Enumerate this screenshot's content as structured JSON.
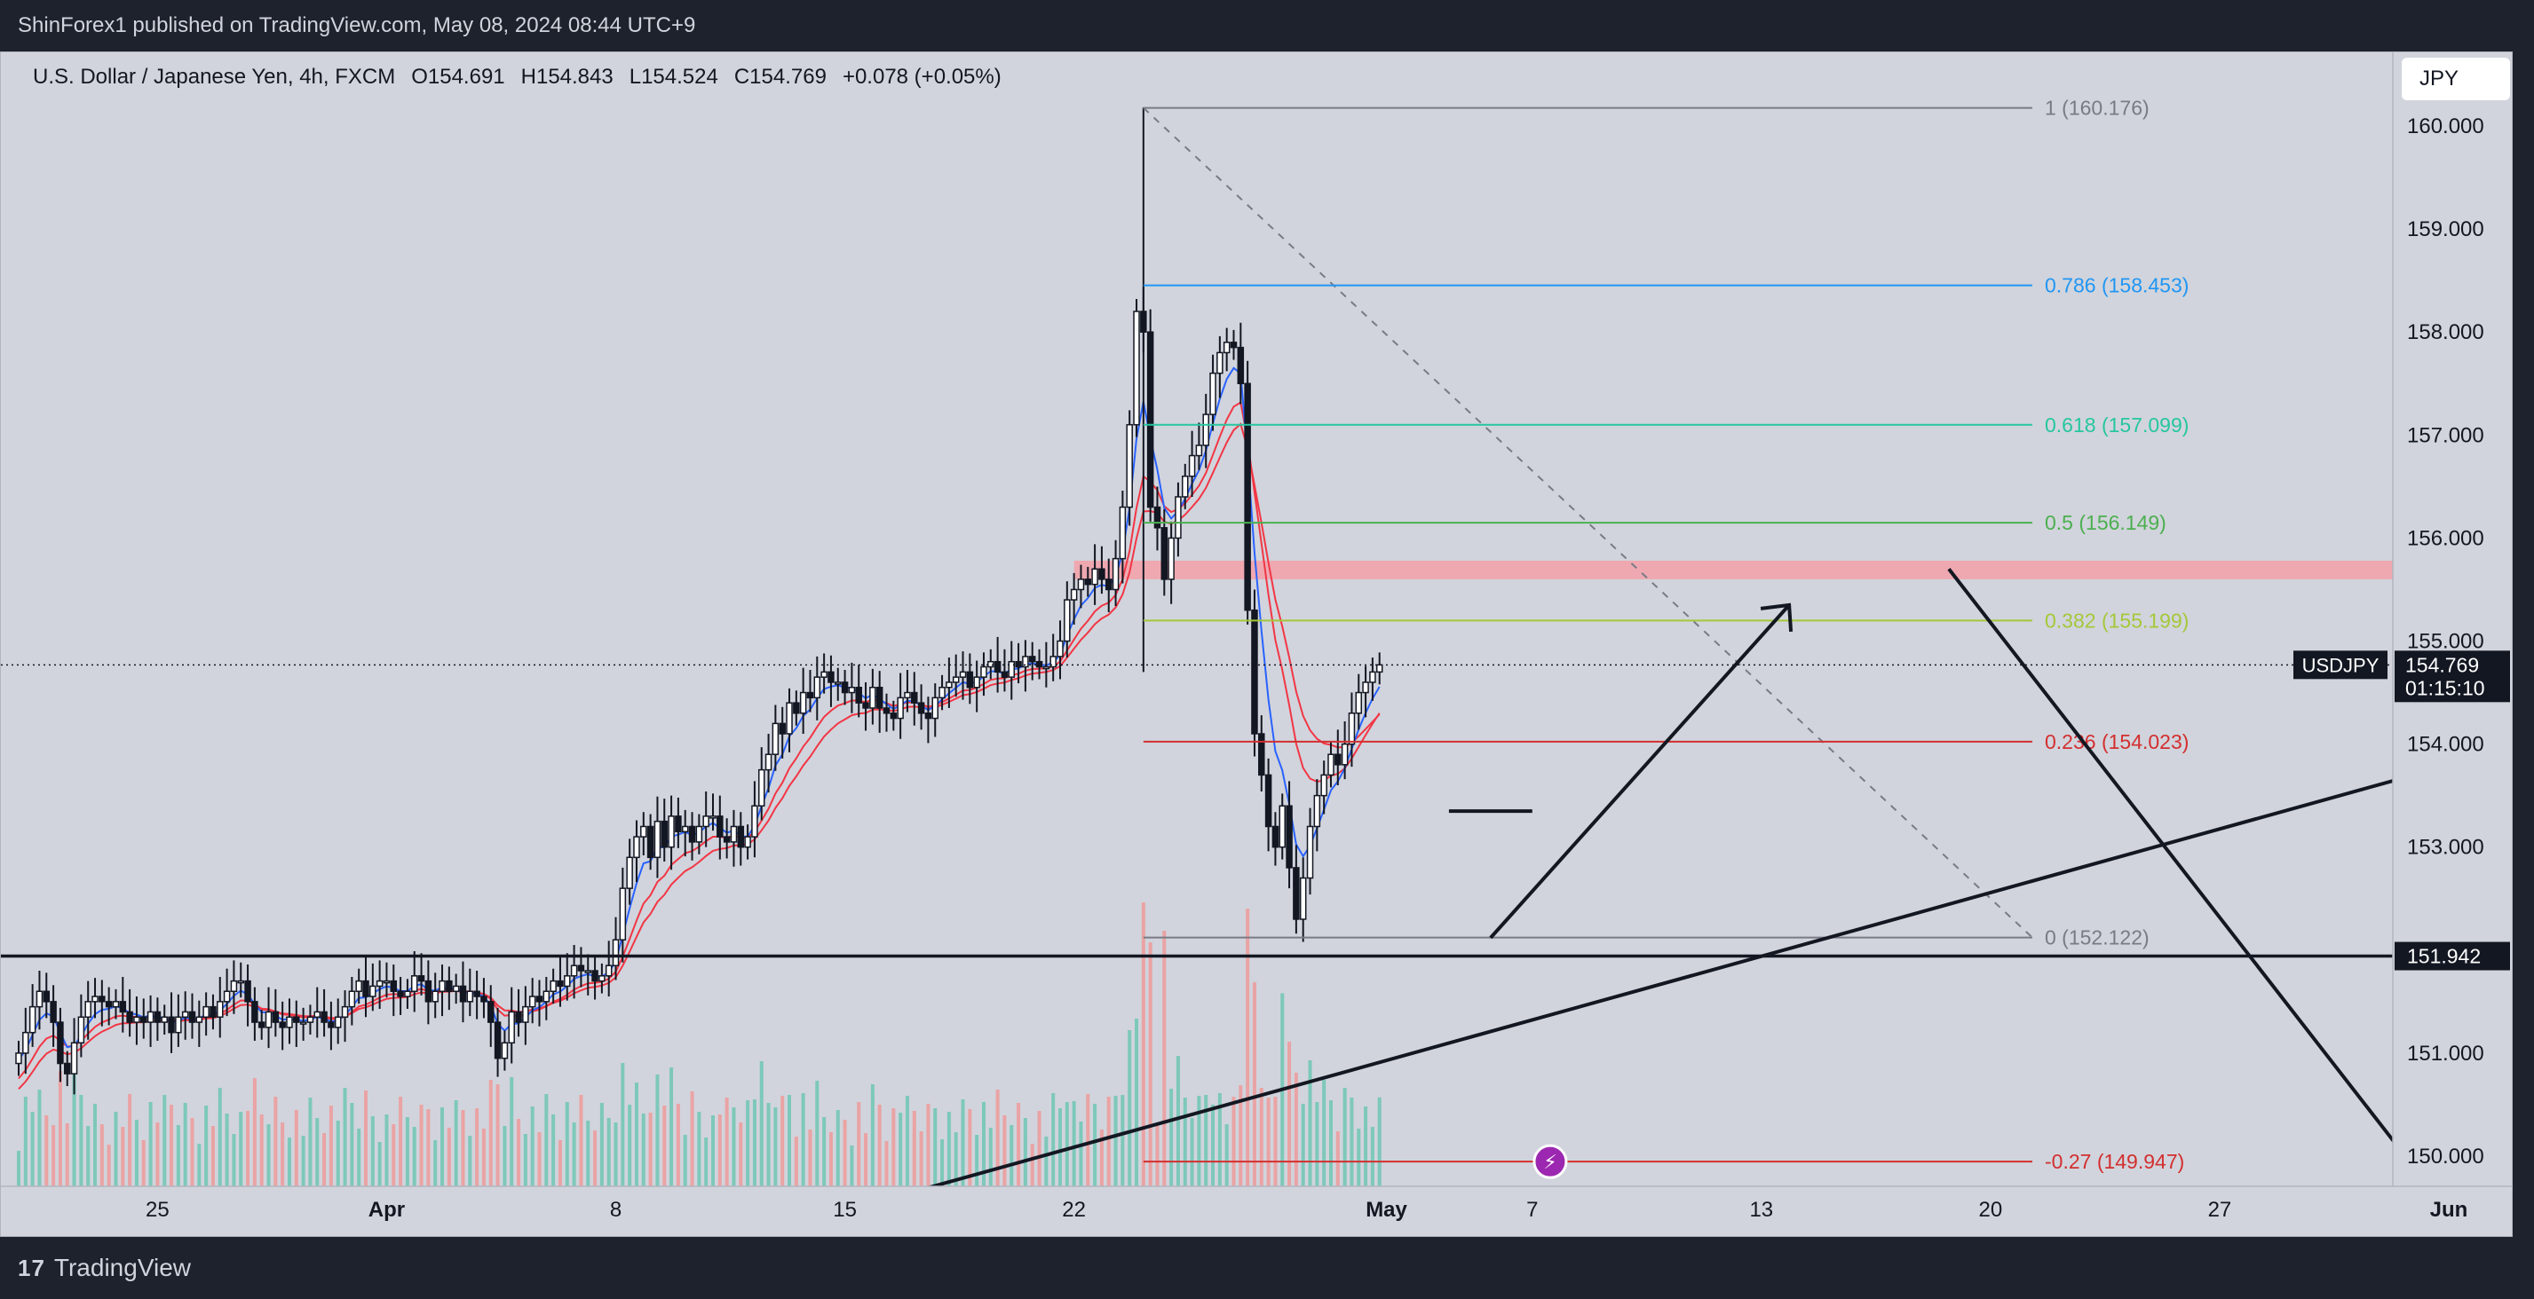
{
  "header": {
    "published_text": "ShinForex1 published on TradingView.com, May 08, 2024 08:44 UTC+9"
  },
  "legend": {
    "symbol": "U.S. Dollar / Japanese Yen, 4h, FXCM",
    "open": "O154.691",
    "high": "H154.843",
    "low": "L154.524",
    "close": "C154.769",
    "change": "+0.078 (+0.05%)"
  },
  "currency_button": {
    "label": "JPY"
  },
  "footer": {
    "brand": "TradingView",
    "logo_glyph": "17"
  },
  "colors": {
    "background": "#d1d4dc",
    "up_candle": "#131722",
    "ema_fast": "#2962ff",
    "ema_slow": "#f23645",
    "fib_0786": "#2196f3",
    "fib_0618": "#26c6a0",
    "fib_05": "#4caf50",
    "fib_0382": "#a5c83a",
    "fib_0236": "#d32f2f",
    "fib_neg027": "#d32f2f",
    "fib_grey": "#787b86",
    "zone": "#f5a0a8",
    "volume_up": "#6fc5b4",
    "volume_down": "#ef9a9a"
  },
  "chart_data": {
    "type": "candlestick",
    "symbol": "USDJPY",
    "timeframe": "4h",
    "price_axis": {
      "ticks": [
        {
          "label": "160.000",
          "value": 160.0
        },
        {
          "label": "159.000",
          "value": 159.0
        },
        {
          "label": "158.000",
          "value": 158.0
        },
        {
          "label": "157.000",
          "value": 157.0
        },
        {
          "label": "156.000",
          "value": 156.0
        },
        {
          "label": "155.000",
          "value": 155.0
        },
        {
          "label": "154.000",
          "value": 154.0
        },
        {
          "label": "153.000",
          "value": 153.0
        },
        {
          "label": "152.000",
          "value": 152.0
        },
        {
          "label": "151.000",
          "value": 151.0
        },
        {
          "label": "150.000",
          "value": 150.0
        }
      ],
      "range": [
        149.7,
        160.2
      ]
    },
    "time_axis": {
      "labels": [
        {
          "label": "25",
          "bold": false,
          "index": 20
        },
        {
          "label": "Apr",
          "bold": true,
          "index": 53
        },
        {
          "label": "8",
          "bold": false,
          "index": 86
        },
        {
          "label": "15",
          "bold": false,
          "index": 119
        },
        {
          "label": "22",
          "bold": false,
          "index": 152
        },
        {
          "label": "May",
          "bold": true,
          "index": 197
        },
        {
          "label": "7",
          "bold": false,
          "index": 218
        },
        {
          "label": "13",
          "bold": false,
          "index": 251
        },
        {
          "label": "20",
          "bold": false,
          "index": 284
        },
        {
          "label": "27",
          "bold": false,
          "index": 317
        },
        {
          "label": "Jun",
          "bold": true,
          "index": 350
        }
      ]
    },
    "price_label": {
      "name": "USDJPY",
      "value": "154.769",
      "countdown": "01:15:10",
      "price": 154.769
    },
    "support_label": {
      "value": "151.942",
      "price": 151.942
    },
    "closes": [
      151.0,
      151.2,
      151.45,
      151.6,
      151.5,
      151.3,
      150.9,
      150.8,
      151.1,
      151.35,
      151.5,
      151.55,
      151.5,
      151.45,
      151.5,
      151.4,
      151.3,
      151.35,
      151.3,
      151.4,
      151.3,
      151.35,
      151.2,
      151.35,
      151.4,
      151.3,
      151.35,
      151.45,
      151.35,
      151.5,
      151.6,
      151.7,
      151.7,
      151.5,
      151.3,
      151.25,
      151.4,
      151.3,
      151.25,
      151.35,
      151.3,
      151.3,
      151.35,
      151.4,
      151.3,
      151.25,
      151.35,
      151.45,
      151.6,
      151.7,
      151.55,
      151.65,
      151.7,
      151.7,
      151.6,
      151.55,
      151.6,
      151.75,
      151.7,
      151.5,
      151.6,
      151.7,
      151.6,
      151.65,
      151.5,
      151.6,
      151.55,
      151.5,
      151.3,
      150.95,
      151.1,
      151.4,
      151.3,
      151.45,
      151.55,
      151.5,
      151.6,
      151.7,
      151.65,
      151.75,
      151.85,
      151.8,
      151.8,
      151.7,
      151.75,
      151.85,
      152.1,
      152.6,
      152.9,
      153.1,
      153.2,
      152.9,
      153.25,
      153.0,
      153.3,
      153.15,
      153.2,
      153.05,
      153.2,
      153.3,
      153.3,
      153.1,
      153.05,
      153.2,
      153.0,
      153.1,
      153.4,
      153.75,
      153.9,
      154.2,
      154.1,
      154.4,
      154.3,
      154.5,
      154.45,
      154.65,
      154.7,
      154.6,
      154.6,
      154.5,
      154.55,
      154.4,
      154.35,
      154.55,
      154.35,
      154.3,
      154.25,
      154.45,
      154.5,
      154.4,
      154.3,
      154.25,
      154.45,
      154.55,
      154.6,
      154.65,
      154.7,
      154.55,
      154.65,
      154.75,
      154.8,
      154.7,
      154.65,
      154.8,
      154.75,
      154.85,
      154.8,
      154.75,
      154.75,
      154.85,
      155.0,
      155.4,
      155.5,
      155.6,
      155.55,
      155.7,
      155.6,
      155.5,
      155.8,
      156.3,
      157.1,
      158.2,
      158.0,
      156.3,
      156.1,
      155.6,
      156.0,
      156.4,
      156.6,
      156.8,
      156.9,
      157.2,
      157.6,
      157.8,
      157.9,
      157.85,
      157.5,
      155.3,
      154.1,
      153.7,
      153.2,
      153.0,
      153.4,
      152.8,
      152.3,
      152.7,
      153.2,
      153.5,
      153.7,
      153.9,
      153.8,
      154.0,
      154.3,
      154.5,
      154.6,
      154.7,
      154.769
    ],
    "ema_fast_first": 150.9,
    "ema_slow_first": 150.7,
    "volume_spikes": [
      {
        "index": 162,
        "relative": 1.0
      },
      {
        "index": 182,
        "relative": 0.68
      },
      {
        "index": 165,
        "relative": 0.9
      }
    ],
    "fibonacci": [
      {
        "level": "1",
        "label": "1 (160.176)",
        "price": 160.176,
        "color": "#787b86"
      },
      {
        "level": "0.786",
        "label": "0.786 (158.453)",
        "price": 158.453,
        "color": "#2196f3"
      },
      {
        "level": "0.618",
        "label": "0.618 (157.099)",
        "price": 157.099,
        "color": "#26c6a0"
      },
      {
        "level": "0.5",
        "label": "0.5 (156.149)",
        "price": 156.149,
        "color": "#4caf50"
      },
      {
        "level": "0.382",
        "label": "0.382 (155.199)",
        "price": 155.199,
        "color": "#a5c83a"
      },
      {
        "level": "0.236",
        "label": "0.236 (154.023)",
        "price": 154.023,
        "color": "#d32f2f"
      },
      {
        "level": "0",
        "label": "0 (152.122)",
        "price": 152.122,
        "color": "#787b86"
      },
      {
        "level": "-0.27",
        "label": "-0.27 (149.947)",
        "price": 149.947,
        "color": "#d32f2f"
      }
    ],
    "resistance_zone": {
      "from": 155.6,
      "to": 155.78,
      "start_index": 152
    },
    "trendline_rising": {
      "from": {
        "index": 126,
        "price": 149.6
      },
      "to": {
        "index": 345,
        "price": 153.7
      }
    },
    "trendline_falling": {
      "from": {
        "index": 278,
        "price": 155.7
      },
      "to": {
        "index": 348,
        "price": 149.63
      }
    },
    "arrow_up": {
      "from": {
        "index": 212,
        "price": 152.12
      },
      "to": {
        "index": 255,
        "price": 155.35
      }
    },
    "neckline": {
      "from": {
        "index": 206,
        "price": 153.35
      },
      "to": {
        "index": 218,
        "price": 153.35
      }
    },
    "alert_marker_glyph": "⚡",
    "alert_marker_index": 217
  }
}
